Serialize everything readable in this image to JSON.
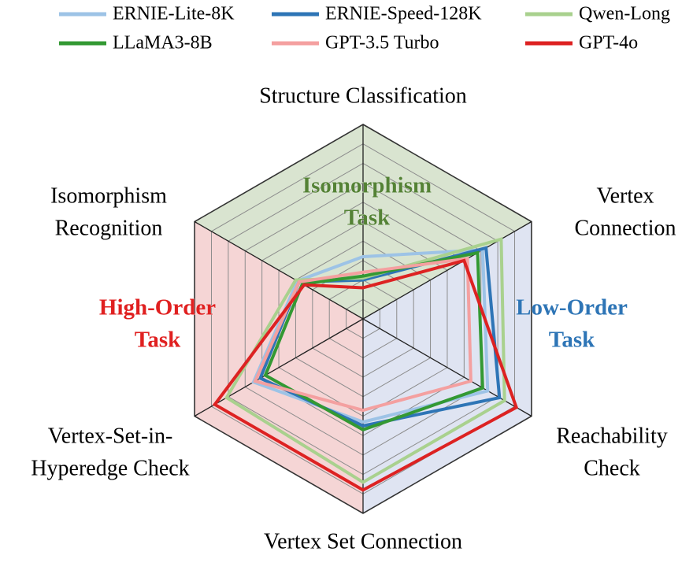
{
  "chart_data": {
    "type": "radar",
    "categories": [
      [
        "Structure Classification"
      ],
      [
        "Vertex",
        "Connection"
      ],
      [
        "Reachability",
        "Check"
      ],
      [
        "Vertex Set Connection"
      ],
      [
        "Vertex-Set-in-",
        "Hyperedge Check"
      ],
      [
        "Isomorphism",
        "Recognition"
      ]
    ],
    "rlim": [
      0,
      100
    ],
    "rticks": [
      10,
      20,
      30,
      40,
      50,
      60,
      70,
      80,
      90,
      100
    ],
    "regions": [
      {
        "label": [
          "Isomorphism",
          "Task"
        ],
        "color": "#548235",
        "fill": "#d9e4d0"
      },
      {
        "label": [
          "Low-Order",
          "Task"
        ],
        "color": "#2e75b6",
        "fill": "#dfe4f2"
      },
      {
        "label": [
          "High-Order",
          "Task"
        ],
        "color": "#e02020",
        "fill": "#f5d5d5"
      }
    ],
    "series": [
      {
        "name": "ERNIE-Lite-8K",
        "color": "#9dc3e6",
        "values": [
          32,
          71,
          74,
          53,
          65,
          39
        ]
      },
      {
        "name": "ERNIE-Speed-128K",
        "color": "#2e75b6",
        "values": [
          20,
          73,
          81,
          55,
          61,
          38
        ]
      },
      {
        "name": "Qwen-Long",
        "color": "#a9d18e",
        "values": [
          21,
          82,
          84,
          84,
          81,
          40
        ]
      },
      {
        "name": "LLaMA3-8B",
        "color": "#339933",
        "values": [
          22,
          68,
          71,
          57,
          58,
          36
        ]
      },
      {
        "name": "GPT-3.5 Turbo",
        "color": "#f4a0a0",
        "values": [
          24,
          62,
          64,
          47,
          64,
          38
        ]
      },
      {
        "name": "GPT-4o",
        "color": "#dd2222",
        "values": [
          16,
          60,
          91,
          88,
          88,
          35
        ]
      }
    ]
  }
}
